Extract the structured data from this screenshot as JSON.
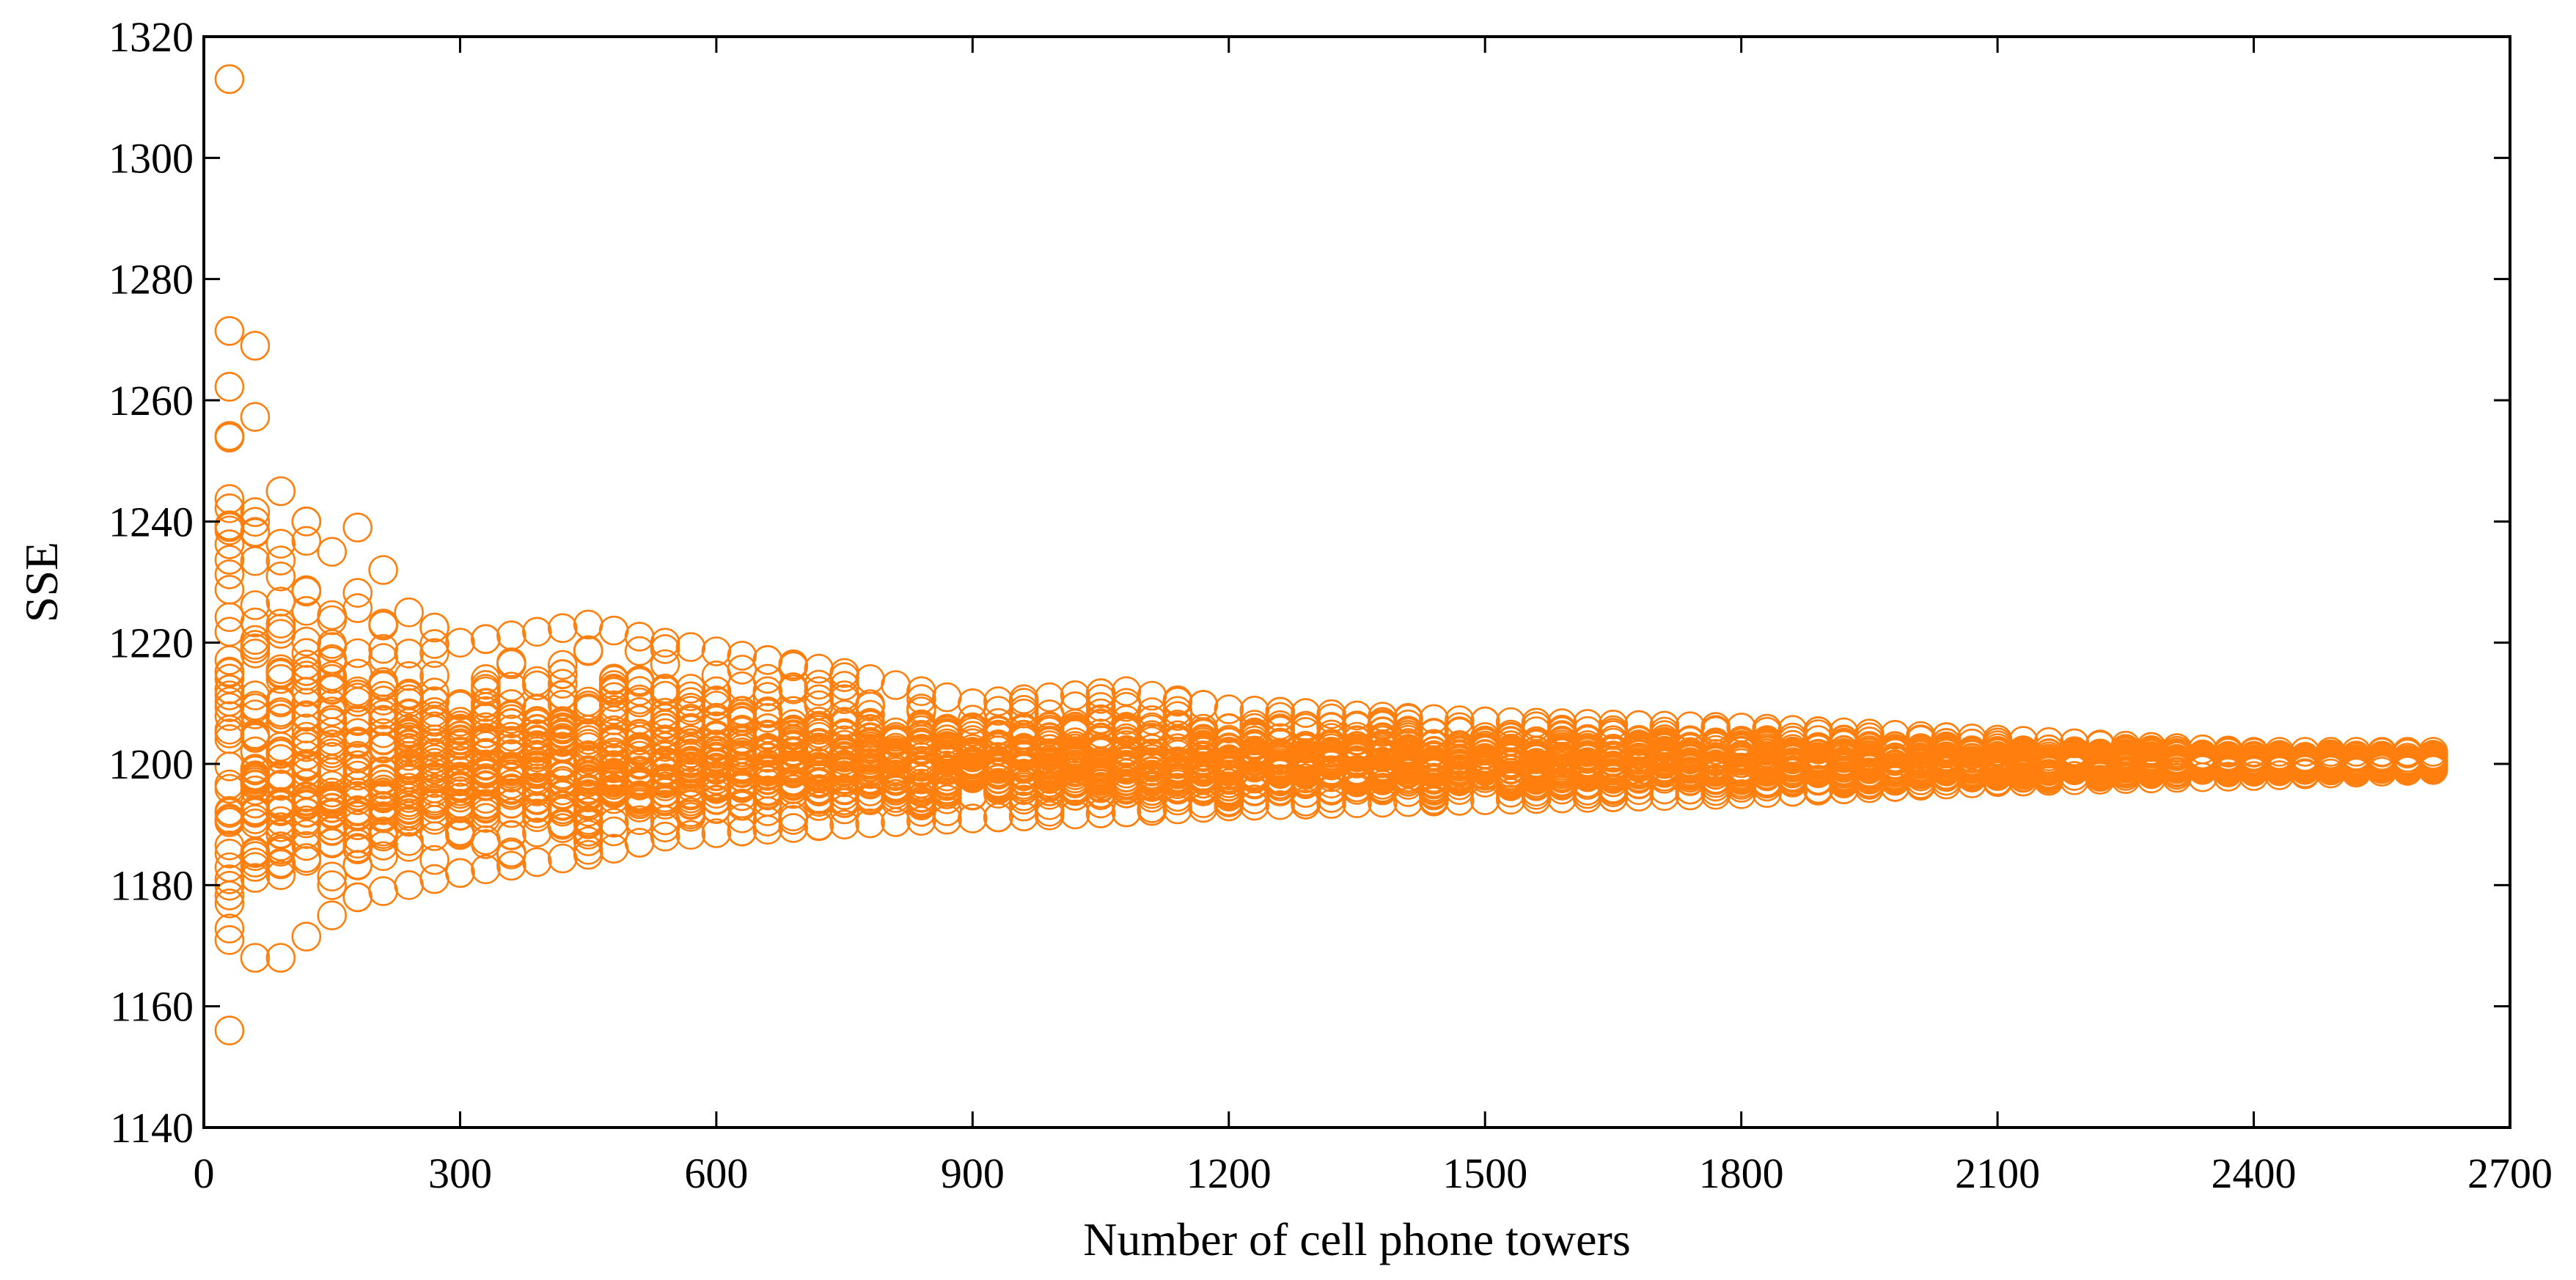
{
  "chart_data": {
    "type": "scatter",
    "xlabel": "Number of cell phone towers",
    "ylabel": "SSE",
    "xlim": [
      0,
      2700
    ],
    "ylim": [
      1140,
      1320
    ],
    "xticks": [
      "0",
      "300",
      "600",
      "900",
      "1200",
      "1500",
      "1800",
      "2100",
      "2400",
      "2700"
    ],
    "yticks": [
      "1140",
      "1160",
      "1180",
      "1200",
      "1220",
      "1240",
      "1260",
      "1280",
      "1300",
      "1320"
    ],
    "grid": false,
    "marker": "open-circle",
    "color": "#FF7F0E",
    "center_value": 1200,
    "x_start": 30,
    "x_end": 2610,
    "x_step": 30,
    "points_per_x": 45,
    "spread_profile": [
      {
        "x": 30,
        "min": 1156,
        "max": 1313
      },
      {
        "x": 60,
        "min": 1168,
        "max": 1269
      },
      {
        "x": 90,
        "min": 1168,
        "max": 1245
      },
      {
        "x": 150,
        "min": 1175,
        "max": 1235
      },
      {
        "x": 180,
        "min": 1178,
        "max": 1239
      },
      {
        "x": 240,
        "min": 1180,
        "max": 1225
      },
      {
        "x": 300,
        "min": 1182,
        "max": 1220
      },
      {
        "x": 450,
        "min": 1185,
        "max": 1223
      },
      {
        "x": 540,
        "min": 1188,
        "max": 1220
      },
      {
        "x": 750,
        "min": 1190,
        "max": 1215
      },
      {
        "x": 900,
        "min": 1191,
        "max": 1210
      },
      {
        "x": 1080,
        "min": 1192,
        "max": 1212
      },
      {
        "x": 1200,
        "min": 1193,
        "max": 1209
      },
      {
        "x": 1500,
        "min": 1194,
        "max": 1207
      },
      {
        "x": 1800,
        "min": 1195,
        "max": 1206
      },
      {
        "x": 2100,
        "min": 1197,
        "max": 1204
      },
      {
        "x": 2400,
        "min": 1198,
        "max": 1202
      },
      {
        "x": 2610,
        "min": 1199,
        "max": 1202
      }
    ]
  }
}
